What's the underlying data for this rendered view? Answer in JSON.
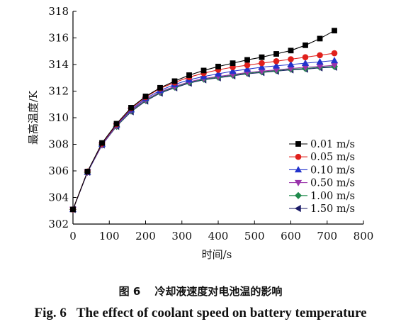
{
  "chart_data": {
    "type": "line",
    "title": "",
    "xlabel": "时间/s",
    "ylabel": "最高温度/K",
    "xlim": [
      0,
      800
    ],
    "ylim": [
      302,
      318
    ],
    "xticks": [
      0,
      100,
      200,
      300,
      400,
      500,
      600,
      700,
      800
    ],
    "yticks": [
      302,
      304,
      306,
      308,
      310,
      312,
      314,
      316,
      318
    ],
    "grid": false,
    "legend_position": "bottom-right",
    "x": [
      0,
      40,
      80,
      120,
      160,
      200,
      240,
      280,
      320,
      360,
      400,
      440,
      480,
      520,
      560,
      600,
      640,
      680,
      720
    ],
    "series": [
      {
        "name": "0.01 m/s",
        "marker": "square",
        "color": "#000000",
        "values": [
          303.1,
          305.95,
          308.1,
          309.55,
          310.75,
          311.6,
          312.25,
          312.75,
          313.2,
          313.55,
          313.85,
          314.1,
          314.35,
          314.55,
          314.8,
          315.05,
          315.45,
          315.95,
          316.55
        ]
      },
      {
        "name": "0.05 m/s",
        "marker": "circle",
        "color": "#e0201c",
        "values": [
          303.1,
          305.95,
          308.05,
          309.5,
          310.7,
          311.55,
          312.2,
          312.65,
          313.05,
          313.35,
          313.6,
          313.8,
          313.95,
          314.1,
          314.25,
          314.4,
          314.55,
          314.7,
          314.85
        ]
      },
      {
        "name": "0.10 m/s",
        "marker": "triangle-up",
        "color": "#2233cc",
        "values": [
          303.1,
          305.9,
          308.0,
          309.45,
          310.6,
          311.45,
          312.05,
          312.5,
          312.85,
          313.1,
          313.3,
          313.5,
          313.65,
          313.8,
          313.9,
          314.0,
          314.1,
          314.2,
          314.3
        ]
      },
      {
        "name": "0.50 m/s",
        "marker": "triangle-down",
        "color": "#9933aa",
        "values": [
          303.1,
          305.9,
          307.95,
          309.4,
          310.55,
          311.35,
          311.95,
          312.35,
          312.7,
          312.95,
          313.1,
          313.25,
          313.4,
          313.5,
          313.6,
          313.7,
          313.8,
          313.85,
          313.95
        ]
      },
      {
        "name": "1.00 m/s",
        "marker": "diamond",
        "color": "#1f8a4c",
        "values": [
          303.1,
          305.9,
          307.95,
          309.35,
          310.5,
          311.3,
          311.9,
          312.3,
          312.65,
          312.9,
          313.05,
          313.2,
          313.35,
          313.45,
          313.55,
          313.65,
          313.7,
          313.8,
          313.85
        ]
      },
      {
        "name": "1.50 m/s",
        "marker": "triangle-left",
        "color": "#1a1a66",
        "values": [
          303.1,
          305.9,
          307.95,
          309.35,
          310.45,
          311.25,
          311.85,
          312.25,
          312.6,
          312.85,
          313.0,
          313.15,
          313.3,
          313.4,
          313.5,
          313.6,
          313.65,
          313.75,
          313.8
        ]
      }
    ]
  },
  "caption": {
    "cn_fig": "图 6",
    "cn_text": "冷却液速度对电池温的影响",
    "en_fig": "Fig. 6",
    "en_text": "The effect of coolant speed on battery temperature"
  }
}
